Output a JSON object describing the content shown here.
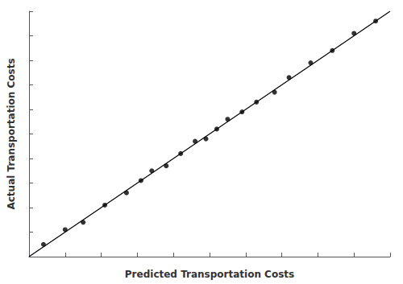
{
  "chart_data": {
    "type": "scatter",
    "xlabel": "Predicted Transportation Costs",
    "ylabel": "Actual Transportation Costs",
    "xlim": [
      0,
      1
    ],
    "ylim": [
      0,
      1
    ],
    "xticks": [
      0,
      0.1,
      0.2,
      0.3,
      0.4,
      0.5,
      0.6,
      0.7,
      0.8,
      0.9,
      1
    ],
    "yticks": [
      0,
      0.1,
      0.2,
      0.3,
      0.4,
      0.5,
      0.6,
      0.7,
      0.8,
      0.9,
      1
    ],
    "tick_labels": false,
    "grid": false,
    "series": [
      {
        "type": "line",
        "color": "#000000",
        "line_style": "solid",
        "x": [
          0,
          1
        ],
        "values": [
          0,
          1
        ]
      },
      {
        "type": "scatter",
        "color": "#000000",
        "marker": "circle",
        "x": [
          0.04,
          0.1,
          0.15,
          0.21,
          0.27,
          0.31,
          0.34,
          0.38,
          0.42,
          0.46,
          0.49,
          0.52,
          0.55,
          0.59,
          0.63,
          0.68,
          0.72,
          0.78,
          0.84,
          0.9,
          0.96
        ],
        "values": [
          0.05,
          0.11,
          0.14,
          0.21,
          0.26,
          0.31,
          0.35,
          0.37,
          0.42,
          0.47,
          0.48,
          0.52,
          0.56,
          0.59,
          0.63,
          0.67,
          0.73,
          0.79,
          0.84,
          0.91,
          0.96
        ]
      }
    ]
  }
}
